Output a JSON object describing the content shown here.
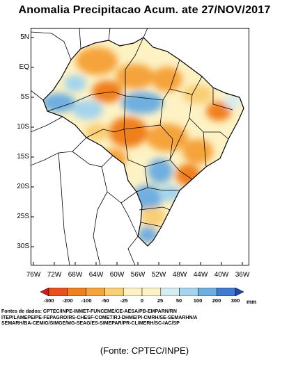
{
  "title": "Anomalia Precipitacao Acum. ate 27/NOV/2017",
  "lat_labels": [
    "5N",
    "EQ",
    "5S",
    "10S",
    "15S",
    "20S",
    "25S",
    "30S"
  ],
  "lon_labels": [
    "76W",
    "72W",
    "68W",
    "64W",
    "60W",
    "56W",
    "52W",
    "48W",
    "44W",
    "40W",
    "36W"
  ],
  "legend": {
    "ticks": [
      "-300",
      "-200",
      "-100",
      "-50",
      "-25",
      "0",
      "25",
      "50",
      "100",
      "200",
      "300"
    ],
    "unit": "mm",
    "colors": [
      "#d7191c",
      "#e8501e",
      "#f07f1f",
      "#f5a33a",
      "#f9cf74",
      "#fdf2c4",
      "#fdf2c4",
      "#d5ecf3",
      "#a6d4ec",
      "#6fafe0",
      "#3f7cd0",
      "#1d46b0"
    ]
  },
  "sources": [
    "Fontes de dados: CPTEC/INPE-INMET-FUNCEME/CE-AESA/PB-EMPARN/RN",
    "ITEP/LAMEPE/PE-FEPAGRO/RS-CHESF-COMET/RJ-DHME/PI-CMRH/SE-SEMARHN/A",
    "SEMARH/BA-CEMIG/SIMGE/MG-SEAG/ES-SIMEPAR/PR-CLIMERH/SC-IAC/SP"
  ],
  "caption": "(Fonte: CPTEC/INPE)"
}
